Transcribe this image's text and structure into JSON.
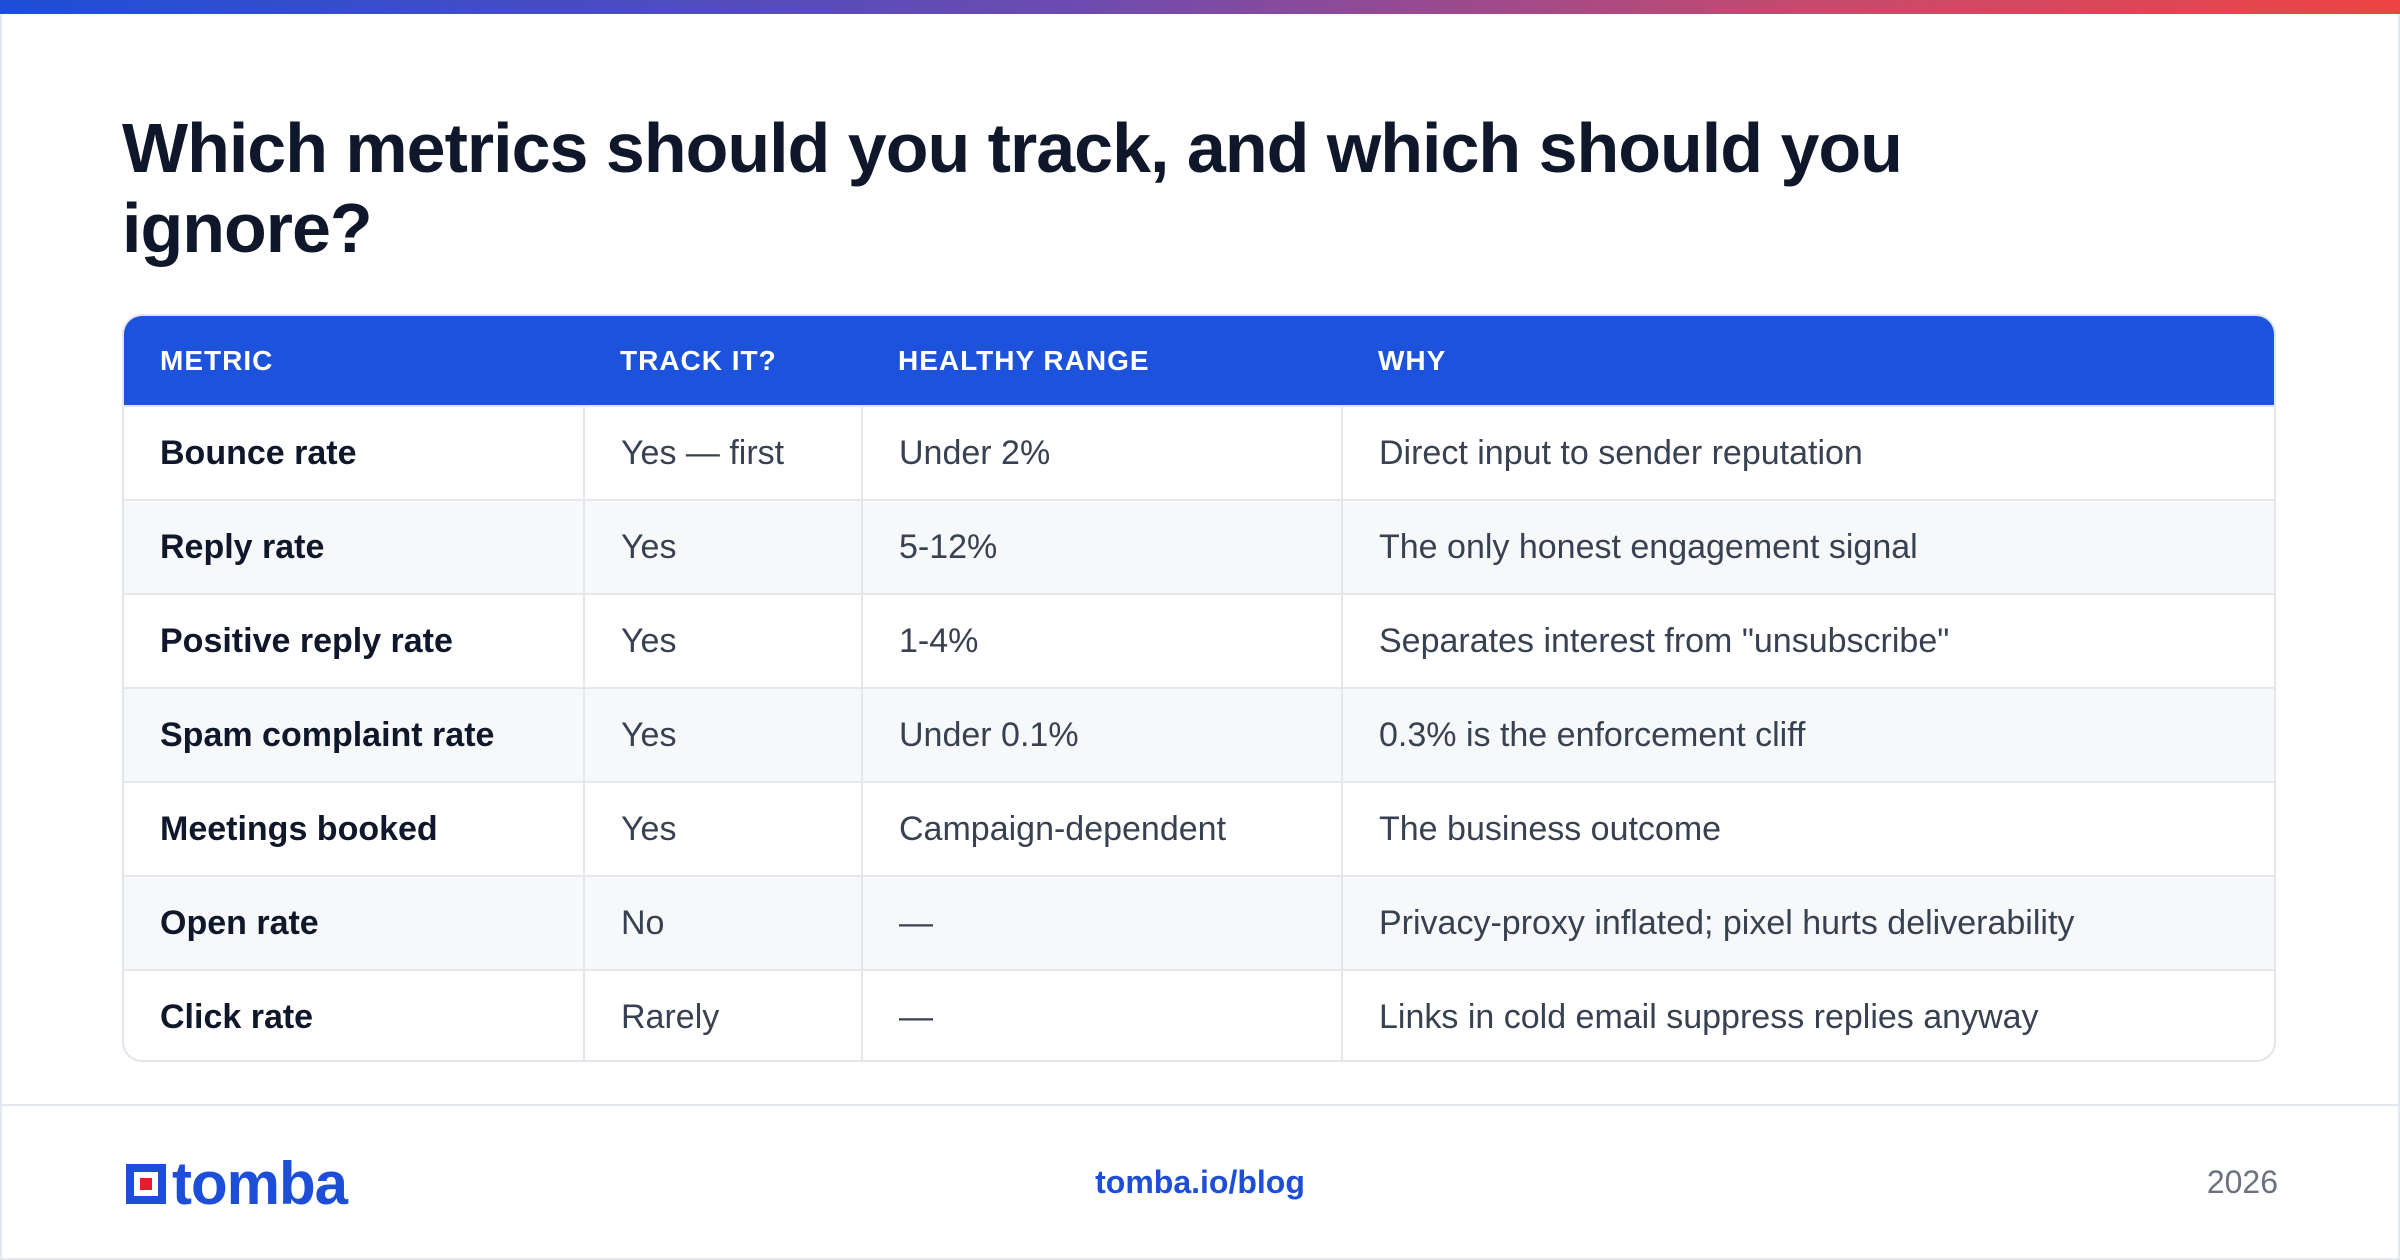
{
  "headline": "Which metrics should you track, and which should you ignore?",
  "table": {
    "headers": [
      "METRIC",
      "TRACK IT?",
      "HEALTHY RANGE",
      "WHY"
    ],
    "rows": [
      [
        "Bounce rate",
        "Yes — first",
        "Under 2%",
        "Direct input to sender reputation"
      ],
      [
        "Reply rate",
        "Yes",
        "5-12%",
        "The only honest engagement signal"
      ],
      [
        "Positive reply rate",
        "Yes",
        "1-4%",
        "Separates interest from \"unsubscribe\""
      ],
      [
        "Spam complaint rate",
        "Yes",
        "Under 0.1%",
        "0.3% is the enforcement cliff"
      ],
      [
        "Meetings booked",
        "Yes",
        "Campaign-dependent",
        "The business outcome"
      ],
      [
        "Open rate",
        "No",
        "—",
        "Privacy-proxy inflated; pixel hurts deliverability"
      ],
      [
        "Click rate",
        "Rarely",
        "—",
        "Links in cold email suppress replies anyway"
      ]
    ]
  },
  "footer": {
    "logo_text": "tomba",
    "link": "tomba.io/blog",
    "year": "2026"
  },
  "colors": {
    "accent": "#1d52dc",
    "logo_red": "#e11d2e",
    "gradient_start": "#1d4ed8",
    "gradient_end": "#ef4444"
  }
}
